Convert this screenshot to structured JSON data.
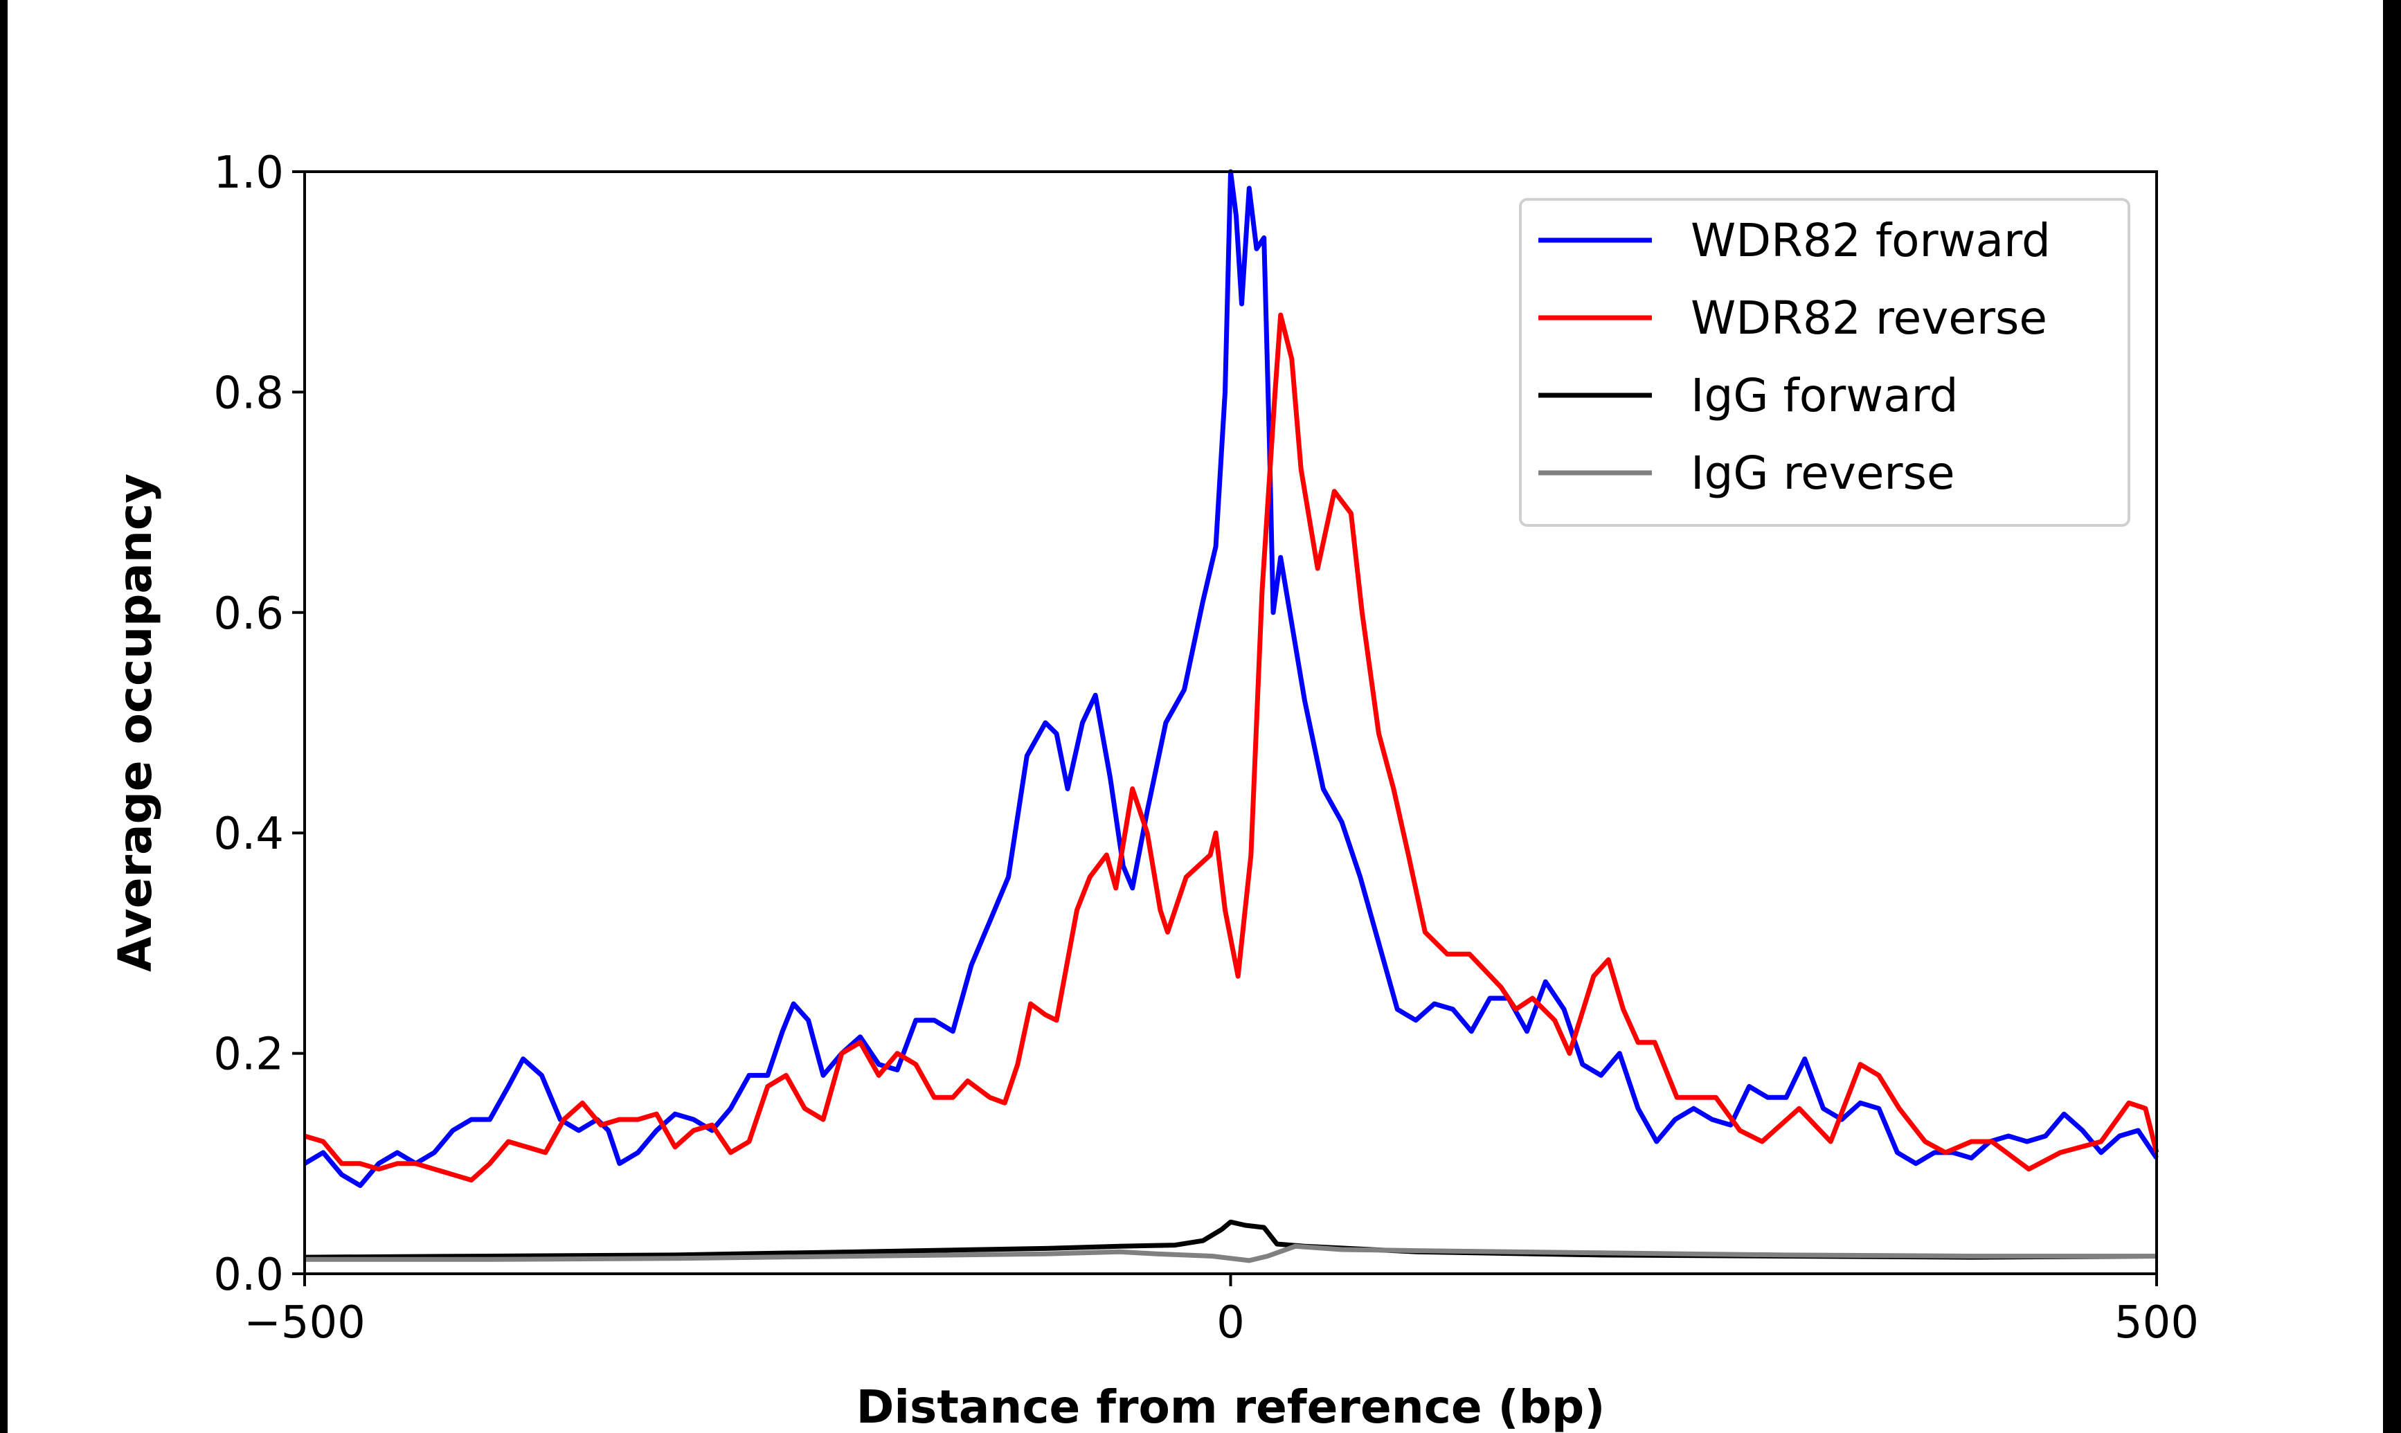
{
  "chart_data": {
    "type": "line",
    "title": "",
    "xlabel": "Distance from reference (bp)",
    "ylabel": "Average occupancy",
    "xlim": [
      -500,
      500
    ],
    "ylim": [
      0,
      1.0
    ],
    "xticks": [
      -500,
      0,
      500
    ],
    "xtick_labels": [
      "−500",
      "0",
      "500"
    ],
    "yticks": [
      0.0,
      0.2,
      0.4,
      0.6,
      0.8,
      1.0
    ],
    "ytick_labels": [
      "0.0",
      "0.2",
      "0.4",
      "0.6",
      "0.8",
      "1.0"
    ],
    "grid": false,
    "legend_position": "top-right",
    "series": [
      {
        "name": "WDR82 forward",
        "color": "#0000ff",
        "points": [
          [
            -500,
            0.1
          ],
          [
            -490,
            0.11
          ],
          [
            -480,
            0.09
          ],
          [
            -470,
            0.08
          ],
          [
            -460,
            0.1
          ],
          [
            -450,
            0.11
          ],
          [
            -440,
            0.1
          ],
          [
            -430,
            0.11
          ],
          [
            -420,
            0.13
          ],
          [
            -410,
            0.14
          ],
          [
            -400,
            0.14
          ],
          [
            -390,
            0.17
          ],
          [
            -382,
            0.195
          ],
          [
            -372,
            0.18
          ],
          [
            -362,
            0.14
          ],
          [
            -352,
            0.13
          ],
          [
            -342,
            0.14
          ],
          [
            -336,
            0.13
          ],
          [
            -330,
            0.1
          ],
          [
            -320,
            0.11
          ],
          [
            -310,
            0.13
          ],
          [
            -300,
            0.145
          ],
          [
            -290,
            0.14
          ],
          [
            -280,
            0.13
          ],
          [
            -270,
            0.15
          ],
          [
            -260,
            0.18
          ],
          [
            -250,
            0.18
          ],
          [
            -242,
            0.22
          ],
          [
            -236,
            0.245
          ],
          [
            -228,
            0.23
          ],
          [
            -220,
            0.18
          ],
          [
            -210,
            0.2
          ],
          [
            -200,
            0.215
          ],
          [
            -190,
            0.19
          ],
          [
            -180,
            0.185
          ],
          [
            -170,
            0.23
          ],
          [
            -160,
            0.23
          ],
          [
            -150,
            0.22
          ],
          [
            -140,
            0.28
          ],
          [
            -130,
            0.32
          ],
          [
            -120,
            0.36
          ],
          [
            -110,
            0.47
          ],
          [
            -100,
            0.5
          ],
          [
            -94,
            0.49
          ],
          [
            -88,
            0.44
          ],
          [
            -80,
            0.5
          ],
          [
            -73,
            0.525
          ],
          [
            -65,
            0.45
          ],
          [
            -58,
            0.37
          ],
          [
            -53,
            0.35
          ],
          [
            -45,
            0.42
          ],
          [
            -35,
            0.5
          ],
          [
            -25,
            0.53
          ],
          [
            -15,
            0.61
          ],
          [
            -8,
            0.66
          ],
          [
            -3,
            0.8
          ],
          [
            0,
            1.0
          ],
          [
            3,
            0.96
          ],
          [
            6,
            0.88
          ],
          [
            10,
            0.985
          ],
          [
            14,
            0.93
          ],
          [
            18,
            0.94
          ],
          [
            21,
            0.75
          ],
          [
            23,
            0.6
          ],
          [
            27,
            0.65
          ],
          [
            32,
            0.6
          ],
          [
            40,
            0.52
          ],
          [
            50,
            0.44
          ],
          [
            60,
            0.41
          ],
          [
            70,
            0.36
          ],
          [
            80,
            0.3
          ],
          [
            90,
            0.24
          ],
          [
            100,
            0.23
          ],
          [
            110,
            0.245
          ],
          [
            120,
            0.24
          ],
          [
            130,
            0.22
          ],
          [
            140,
            0.25
          ],
          [
            150,
            0.25
          ],
          [
            160,
            0.22
          ],
          [
            170,
            0.265
          ],
          [
            180,
            0.24
          ],
          [
            190,
            0.19
          ],
          [
            200,
            0.18
          ],
          [
            210,
            0.2
          ],
          [
            220,
            0.15
          ],
          [
            230,
            0.12
          ],
          [
            240,
            0.14
          ],
          [
            250,
            0.15
          ],
          [
            260,
            0.14
          ],
          [
            270,
            0.135
          ],
          [
            280,
            0.17
          ],
          [
            290,
            0.16
          ],
          [
            300,
            0.16
          ],
          [
            310,
            0.195
          ],
          [
            320,
            0.15
          ],
          [
            330,
            0.14
          ],
          [
            340,
            0.155
          ],
          [
            350,
            0.15
          ],
          [
            360,
            0.11
          ],
          [
            370,
            0.1
          ],
          [
            380,
            0.11
          ],
          [
            390,
            0.11
          ],
          [
            400,
            0.105
          ],
          [
            410,
            0.12
          ],
          [
            420,
            0.125
          ],
          [
            430,
            0.12
          ],
          [
            440,
            0.125
          ],
          [
            450,
            0.145
          ],
          [
            460,
            0.13
          ],
          [
            470,
            0.11
          ],
          [
            480,
            0.125
          ],
          [
            490,
            0.13
          ],
          [
            500,
            0.105
          ]
        ]
      },
      {
        "name": "WDR82 reverse",
        "color": "#ff0000",
        "points": [
          [
            -500,
            0.125
          ],
          [
            -490,
            0.12
          ],
          [
            -480,
            0.1
          ],
          [
            -470,
            0.1
          ],
          [
            -460,
            0.095
          ],
          [
            -450,
            0.1
          ],
          [
            -440,
            0.1
          ],
          [
            -430,
            0.095
          ],
          [
            -420,
            0.09
          ],
          [
            -410,
            0.085
          ],
          [
            -400,
            0.1
          ],
          [
            -390,
            0.12
          ],
          [
            -380,
            0.115
          ],
          [
            -370,
            0.11
          ],
          [
            -360,
            0.14
          ],
          [
            -350,
            0.155
          ],
          [
            -340,
            0.135
          ],
          [
            -330,
            0.14
          ],
          [
            -320,
            0.14
          ],
          [
            -310,
            0.145
          ],
          [
            -300,
            0.115
          ],
          [
            -290,
            0.13
          ],
          [
            -280,
            0.135
          ],
          [
            -270,
            0.11
          ],
          [
            -260,
            0.12
          ],
          [
            -250,
            0.17
          ],
          [
            -240,
            0.18
          ],
          [
            -230,
            0.15
          ],
          [
            -220,
            0.14
          ],
          [
            -210,
            0.2
          ],
          [
            -200,
            0.21
          ],
          [
            -190,
            0.18
          ],
          [
            -180,
            0.2
          ],
          [
            -170,
            0.19
          ],
          [
            -160,
            0.16
          ],
          [
            -150,
            0.16
          ],
          [
            -142,
            0.175
          ],
          [
            -130,
            0.16
          ],
          [
            -122,
            0.155
          ],
          [
            -115,
            0.19
          ],
          [
            -108,
            0.245
          ],
          [
            -100,
            0.235
          ],
          [
            -94,
            0.23
          ],
          [
            -83,
            0.33
          ],
          [
            -76,
            0.36
          ],
          [
            -67,
            0.38
          ],
          [
            -62,
            0.35
          ],
          [
            -53,
            0.44
          ],
          [
            -45,
            0.4
          ],
          [
            -38,
            0.33
          ],
          [
            -34,
            0.31
          ],
          [
            -24,
            0.36
          ],
          [
            -11,
            0.38
          ],
          [
            -8,
            0.4
          ],
          [
            -3,
            0.33
          ],
          [
            4,
            0.27
          ],
          [
            11,
            0.38
          ],
          [
            17,
            0.62
          ],
          [
            24,
            0.8
          ],
          [
            27,
            0.87
          ],
          [
            33,
            0.83
          ],
          [
            38,
            0.73
          ],
          [
            47,
            0.64
          ],
          [
            56,
            0.71
          ],
          [
            65,
            0.69
          ],
          [
            71,
            0.6
          ],
          [
            80,
            0.49
          ],
          [
            88,
            0.44
          ],
          [
            96,
            0.38
          ],
          [
            105,
            0.31
          ],
          [
            117,
            0.29
          ],
          [
            129,
            0.29
          ],
          [
            146,
            0.26
          ],
          [
            154,
            0.24
          ],
          [
            163,
            0.25
          ],
          [
            175,
            0.23
          ],
          [
            183,
            0.2
          ],
          [
            196,
            0.27
          ],
          [
            204,
            0.285
          ],
          [
            212,
            0.24
          ],
          [
            220,
            0.21
          ],
          [
            229,
            0.21
          ],
          [
            241,
            0.16
          ],
          [
            252,
            0.16
          ],
          [
            262,
            0.16
          ],
          [
            275,
            0.13
          ],
          [
            287,
            0.12
          ],
          [
            307,
            0.15
          ],
          [
            324,
            0.12
          ],
          [
            340,
            0.19
          ],
          [
            350,
            0.18
          ],
          [
            361,
            0.15
          ],
          [
            375,
            0.12
          ],
          [
            386,
            0.11
          ],
          [
            400,
            0.12
          ],
          [
            411,
            0.12
          ],
          [
            431,
            0.095
          ],
          [
            448,
            0.11
          ],
          [
            470,
            0.12
          ],
          [
            485,
            0.155
          ],
          [
            494,
            0.15
          ],
          [
            500,
            0.11
          ]
        ]
      },
      {
        "name": "IgG forward",
        "color": "#000000",
        "points": [
          [
            -500,
            0.015
          ],
          [
            -400,
            0.016
          ],
          [
            -300,
            0.017
          ],
          [
            -200,
            0.02
          ],
          [
            -100,
            0.023
          ],
          [
            -60,
            0.025
          ],
          [
            -30,
            0.026
          ],
          [
            -15,
            0.03
          ],
          [
            -5,
            0.04
          ],
          [
            0,
            0.047
          ],
          [
            8,
            0.044
          ],
          [
            18,
            0.042
          ],
          [
            25,
            0.027
          ],
          [
            40,
            0.025
          ],
          [
            100,
            0.02
          ],
          [
            200,
            0.017
          ],
          [
            300,
            0.016
          ],
          [
            400,
            0.015
          ],
          [
            500,
            0.016
          ]
        ]
      },
      {
        "name": "IgG reverse",
        "color": "#808080",
        "points": [
          [
            -500,
            0.013
          ],
          [
            -400,
            0.013
          ],
          [
            -300,
            0.014
          ],
          [
            -200,
            0.016
          ],
          [
            -100,
            0.018
          ],
          [
            -60,
            0.02
          ],
          [
            -40,
            0.018
          ],
          [
            -10,
            0.016
          ],
          [
            10,
            0.012
          ],
          [
            20,
            0.016
          ],
          [
            35,
            0.025
          ],
          [
            60,
            0.022
          ],
          [
            100,
            0.021
          ],
          [
            200,
            0.019
          ],
          [
            300,
            0.017
          ],
          [
            400,
            0.016
          ],
          [
            500,
            0.016
          ]
        ]
      }
    ]
  }
}
